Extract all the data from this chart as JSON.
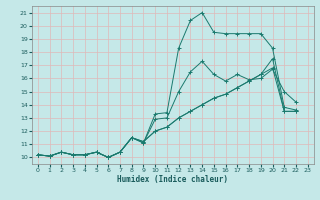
{
  "xlabel": "Humidex (Indice chaleur)",
  "bg_color": "#c5e8e8",
  "line_color": "#1a7a6e",
  "grid_color": "#e0b8b8",
  "xlim": [
    -0.5,
    23.5
  ],
  "ylim": [
    9.5,
    21.5
  ],
  "xticks": [
    0,
    1,
    2,
    3,
    4,
    5,
    6,
    7,
    8,
    9,
    10,
    11,
    12,
    13,
    14,
    15,
    16,
    17,
    18,
    19,
    20,
    21,
    22,
    23
  ],
  "yticks": [
    10,
    11,
    12,
    13,
    14,
    15,
    16,
    17,
    18,
    19,
    20,
    21
  ],
  "series": [
    [
      10.2,
      10.1,
      10.4,
      10.2,
      10.2,
      10.4,
      10.0,
      10.4,
      11.5,
      11.1,
      13.3,
      13.4,
      18.3,
      20.4,
      21.0,
      19.5,
      19.4,
      19.4,
      19.4,
      19.4,
      18.3,
      13.8,
      13.6,
      null
    ],
    [
      10.2,
      10.1,
      10.4,
      10.2,
      10.2,
      10.4,
      10.0,
      10.4,
      11.5,
      11.1,
      12.9,
      13.0,
      15.0,
      16.5,
      17.3,
      16.3,
      15.8,
      16.3,
      15.9,
      16.0,
      16.7,
      15.0,
      14.2,
      null
    ],
    [
      10.2,
      10.1,
      10.4,
      10.2,
      10.2,
      10.4,
      10.0,
      10.4,
      11.5,
      11.2,
      12.0,
      12.3,
      13.0,
      13.5,
      14.0,
      14.5,
      14.8,
      15.3,
      15.8,
      16.3,
      16.8,
      13.5,
      13.5,
      null
    ],
    [
      10.2,
      10.1,
      10.4,
      10.2,
      10.2,
      10.4,
      10.0,
      10.4,
      11.5,
      11.2,
      12.0,
      12.3,
      13.0,
      13.5,
      14.0,
      14.5,
      14.8,
      15.3,
      15.8,
      16.3,
      17.5,
      13.5,
      13.5,
      null
    ]
  ]
}
